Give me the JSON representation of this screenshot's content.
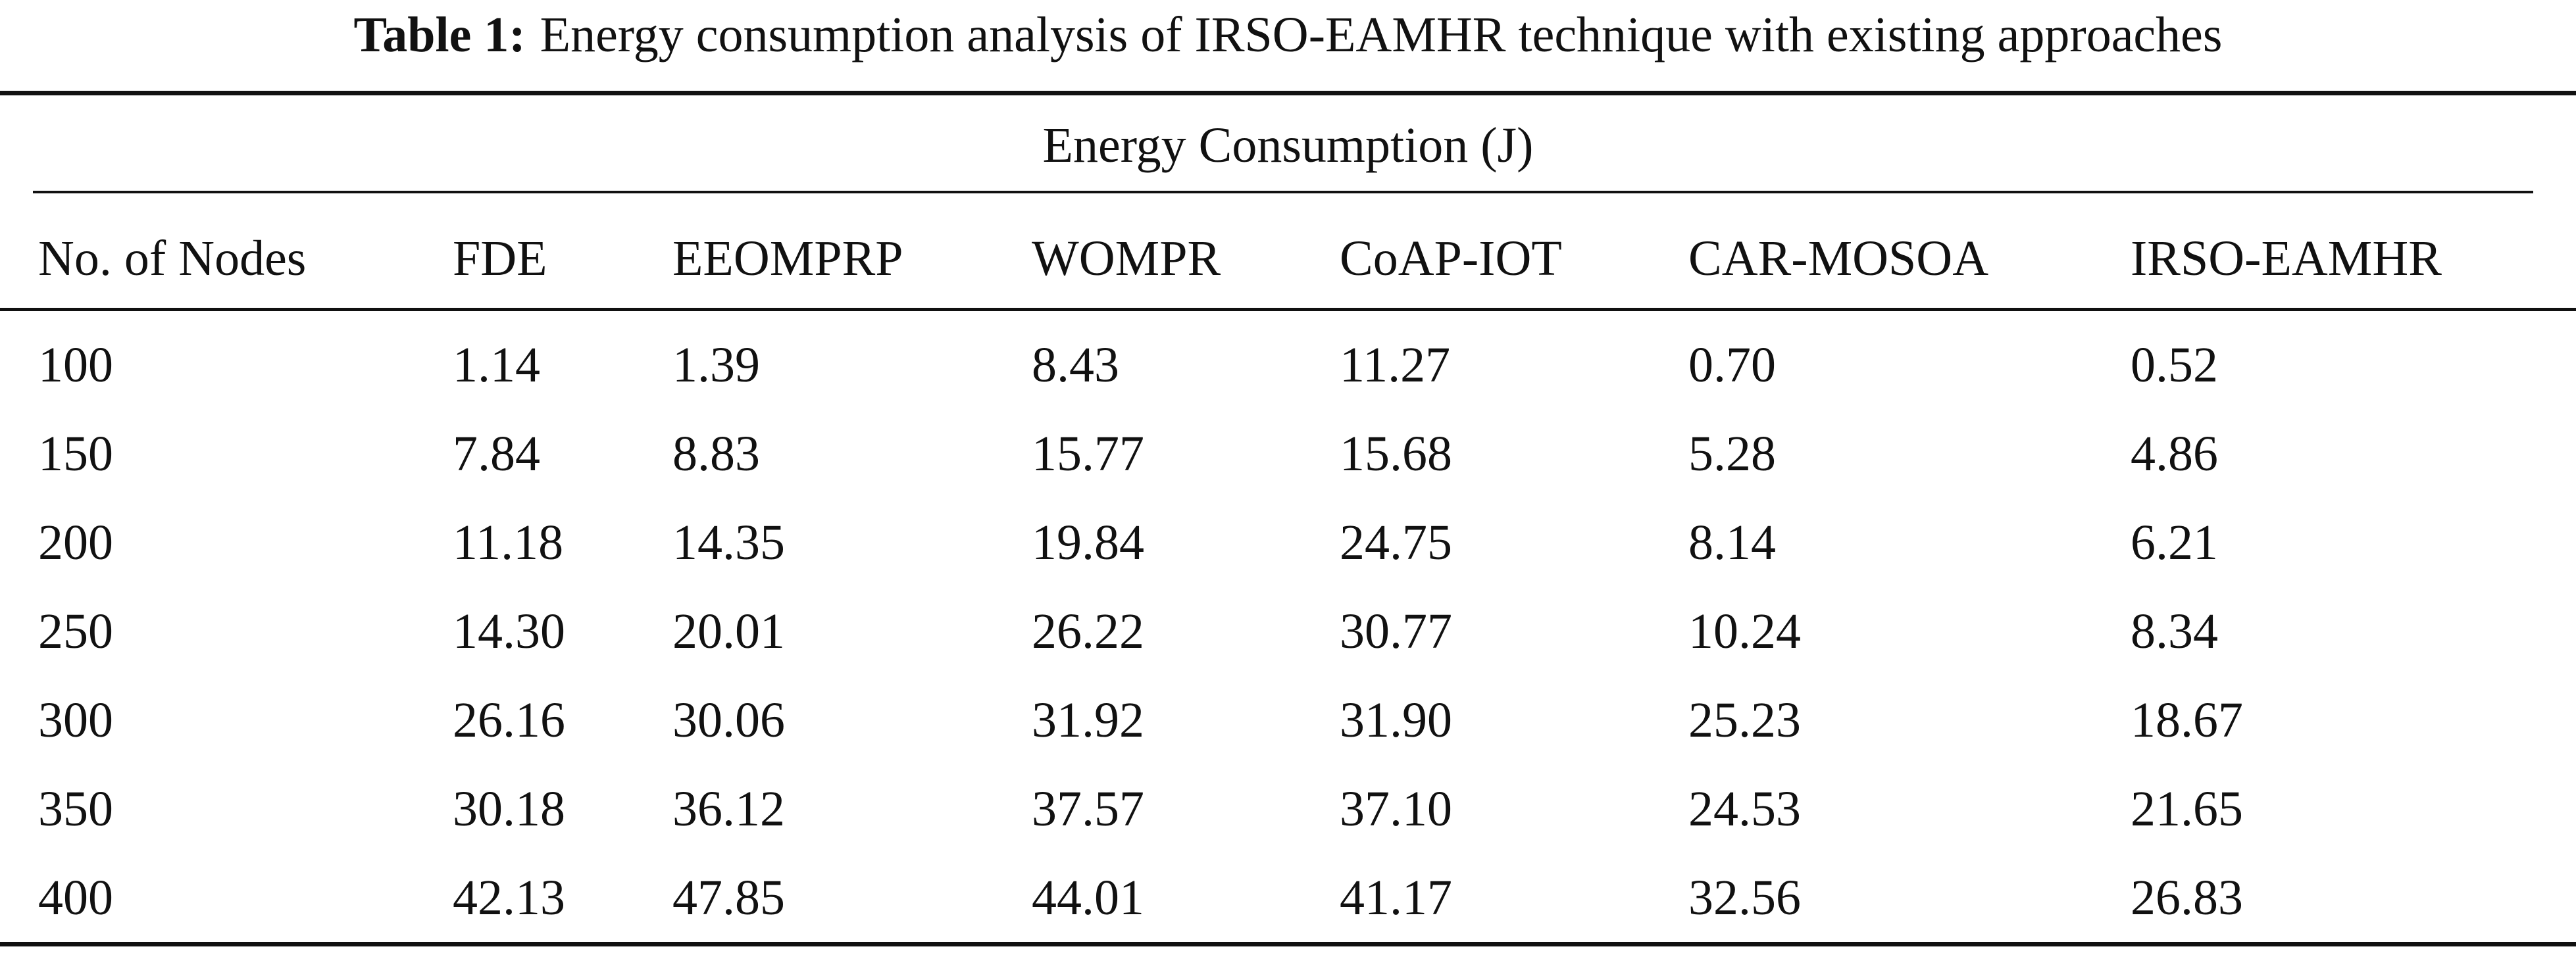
{
  "table": {
    "caption_label": "Table 1:",
    "caption_text": "Energy consumption analysis of IRSO-EAMHR technique with existing approaches",
    "group_header": "Energy Consumption (J)",
    "columns": [
      "No. of Nodes",
      "FDE",
      "EEOMPRP",
      "WOMPR",
      "CoAP-IOT",
      "CAR-MOSOA",
      "IRSO-EAMHR"
    ],
    "rows": [
      [
        "100",
        "1.14",
        "1.39",
        "8.43",
        "11.27",
        "0.70",
        "0.52"
      ],
      [
        "150",
        "7.84",
        "8.83",
        "15.77",
        "15.68",
        "5.28",
        "4.86"
      ],
      [
        "200",
        "11.18",
        "14.35",
        "19.84",
        "24.75",
        "8.14",
        "6.21"
      ],
      [
        "250",
        "14.30",
        "20.01",
        "26.22",
        "30.77",
        "10.24",
        "8.34"
      ],
      [
        "300",
        "26.16",
        "30.06",
        "31.92",
        "31.90",
        "25.23",
        "18.67"
      ],
      [
        "350",
        "30.18",
        "36.12",
        "37.57",
        "37.10",
        "24.53",
        "21.65"
      ],
      [
        "400",
        "42.13",
        "47.85",
        "44.01",
        "41.17",
        "32.56",
        "26.83"
      ]
    ]
  }
}
